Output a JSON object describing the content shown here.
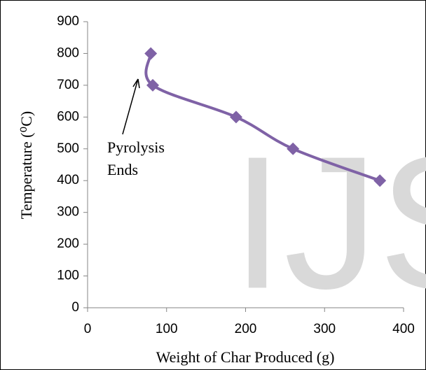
{
  "chart_data": {
    "type": "line",
    "x_label": "Weight of Char Produced (g)",
    "y_label": "Temperature (⁰C)",
    "annotation": [
      "Pyrolysis",
      "Ends"
    ],
    "watermark": "IJS",
    "series": [
      {
        "name": "Temperature",
        "color": "#7f62a6",
        "x": [
          80,
          82.5,
          188,
          260,
          370
        ],
        "values": [
          800,
          700,
          600,
          500,
          400
        ]
      }
    ],
    "xlim": [
      0,
      400
    ],
    "xticks": [
      0,
      100,
      200,
      300,
      400
    ],
    "ylim": [
      0,
      900
    ],
    "yticks": [
      0,
      100,
      200,
      300,
      400,
      500,
      600,
      700,
      800,
      900
    ],
    "grid": false
  }
}
